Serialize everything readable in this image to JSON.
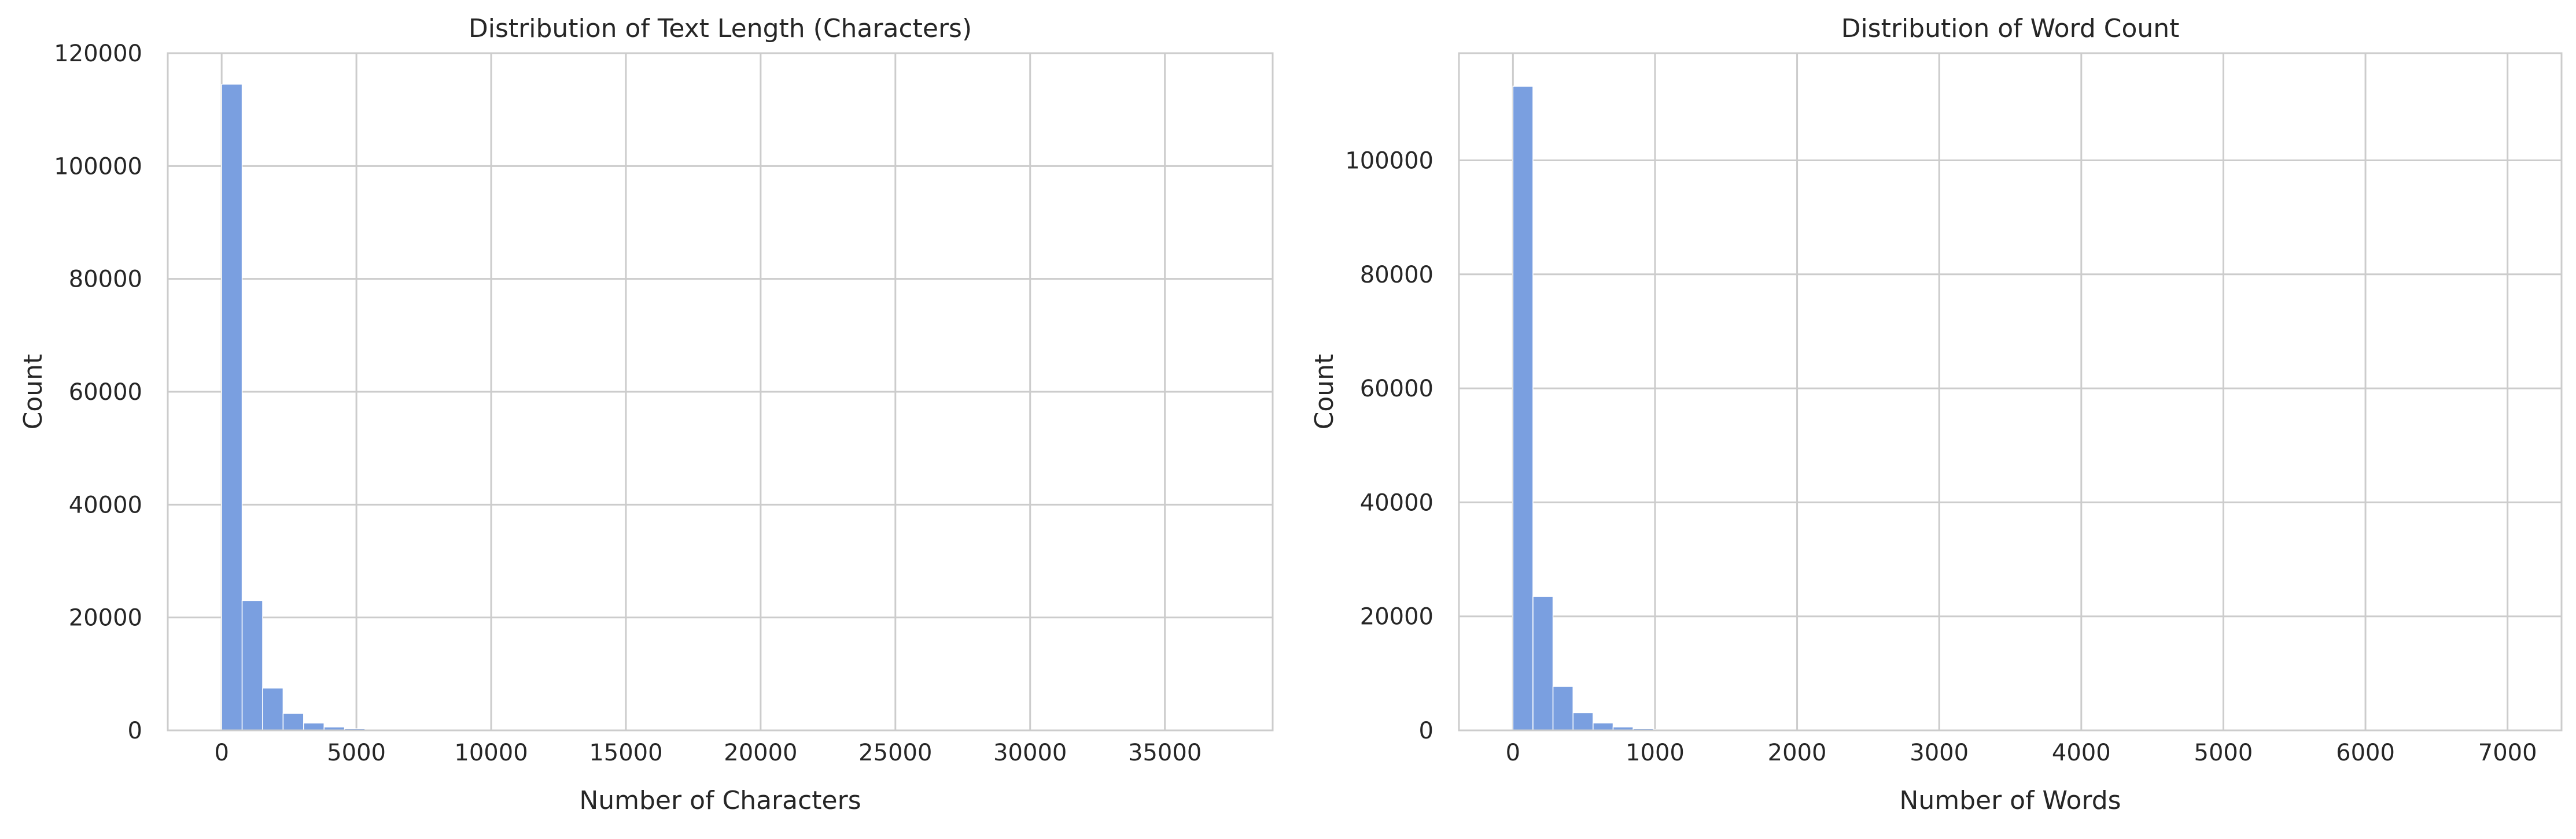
{
  "chart_data": [
    {
      "type": "bar",
      "title": "Distribution of Text Length (Characters)",
      "xlabel": "Number of Characters",
      "ylabel": "Count",
      "xlim": [
        -2000,
        39000
      ],
      "ylim": [
        0,
        120000
      ],
      "xticks": [
        0,
        5000,
        10000,
        15000,
        20000,
        25000,
        30000,
        35000
      ],
      "yticks": [
        0,
        20000,
        40000,
        60000,
        80000,
        100000,
        120000
      ],
      "bin_start": 0,
      "bin_width": 760,
      "values": [
        114500,
        23000,
        7500,
        3000,
        1300,
        600,
        280,
        140,
        90,
        60,
        40,
        30,
        20,
        15,
        12,
        10,
        8,
        6,
        5,
        4,
        3,
        3,
        2,
        2,
        2,
        1,
        1,
        1,
        1,
        1,
        1,
        1,
        1,
        1,
        1,
        1,
        1,
        1,
        1,
        1,
        1,
        1,
        1,
        1,
        1,
        1,
        1,
        1,
        1,
        1
      ],
      "grid": true,
      "color": "#7a9fe0"
    },
    {
      "type": "bar",
      "title": "Distribution of Word Count",
      "xlabel": "Number of Words",
      "ylabel": "Count",
      "xlim": [
        -380,
        7380
      ],
      "ylim": [
        0,
        118800
      ],
      "xticks": [
        0,
        1000,
        2000,
        3000,
        4000,
        5000,
        6000,
        7000
      ],
      "yticks": [
        0,
        20000,
        40000,
        60000,
        80000,
        100000
      ],
      "bin_start": 0,
      "bin_width": 141,
      "values": [
        113000,
        23500,
        7700,
        3100,
        1300,
        600,
        280,
        140,
        90,
        60,
        40,
        30,
        20,
        15,
        12,
        10,
        8,
        6,
        5,
        4,
        3,
        3,
        2,
        2,
        2,
        1,
        1,
        1,
        1,
        1,
        1,
        1,
        1,
        1,
        1,
        1,
        1,
        1,
        1,
        1,
        1,
        1,
        1,
        1,
        1,
        1,
        1,
        1,
        1,
        1
      ],
      "grid": true,
      "color": "#7a9fe0"
    }
  ]
}
